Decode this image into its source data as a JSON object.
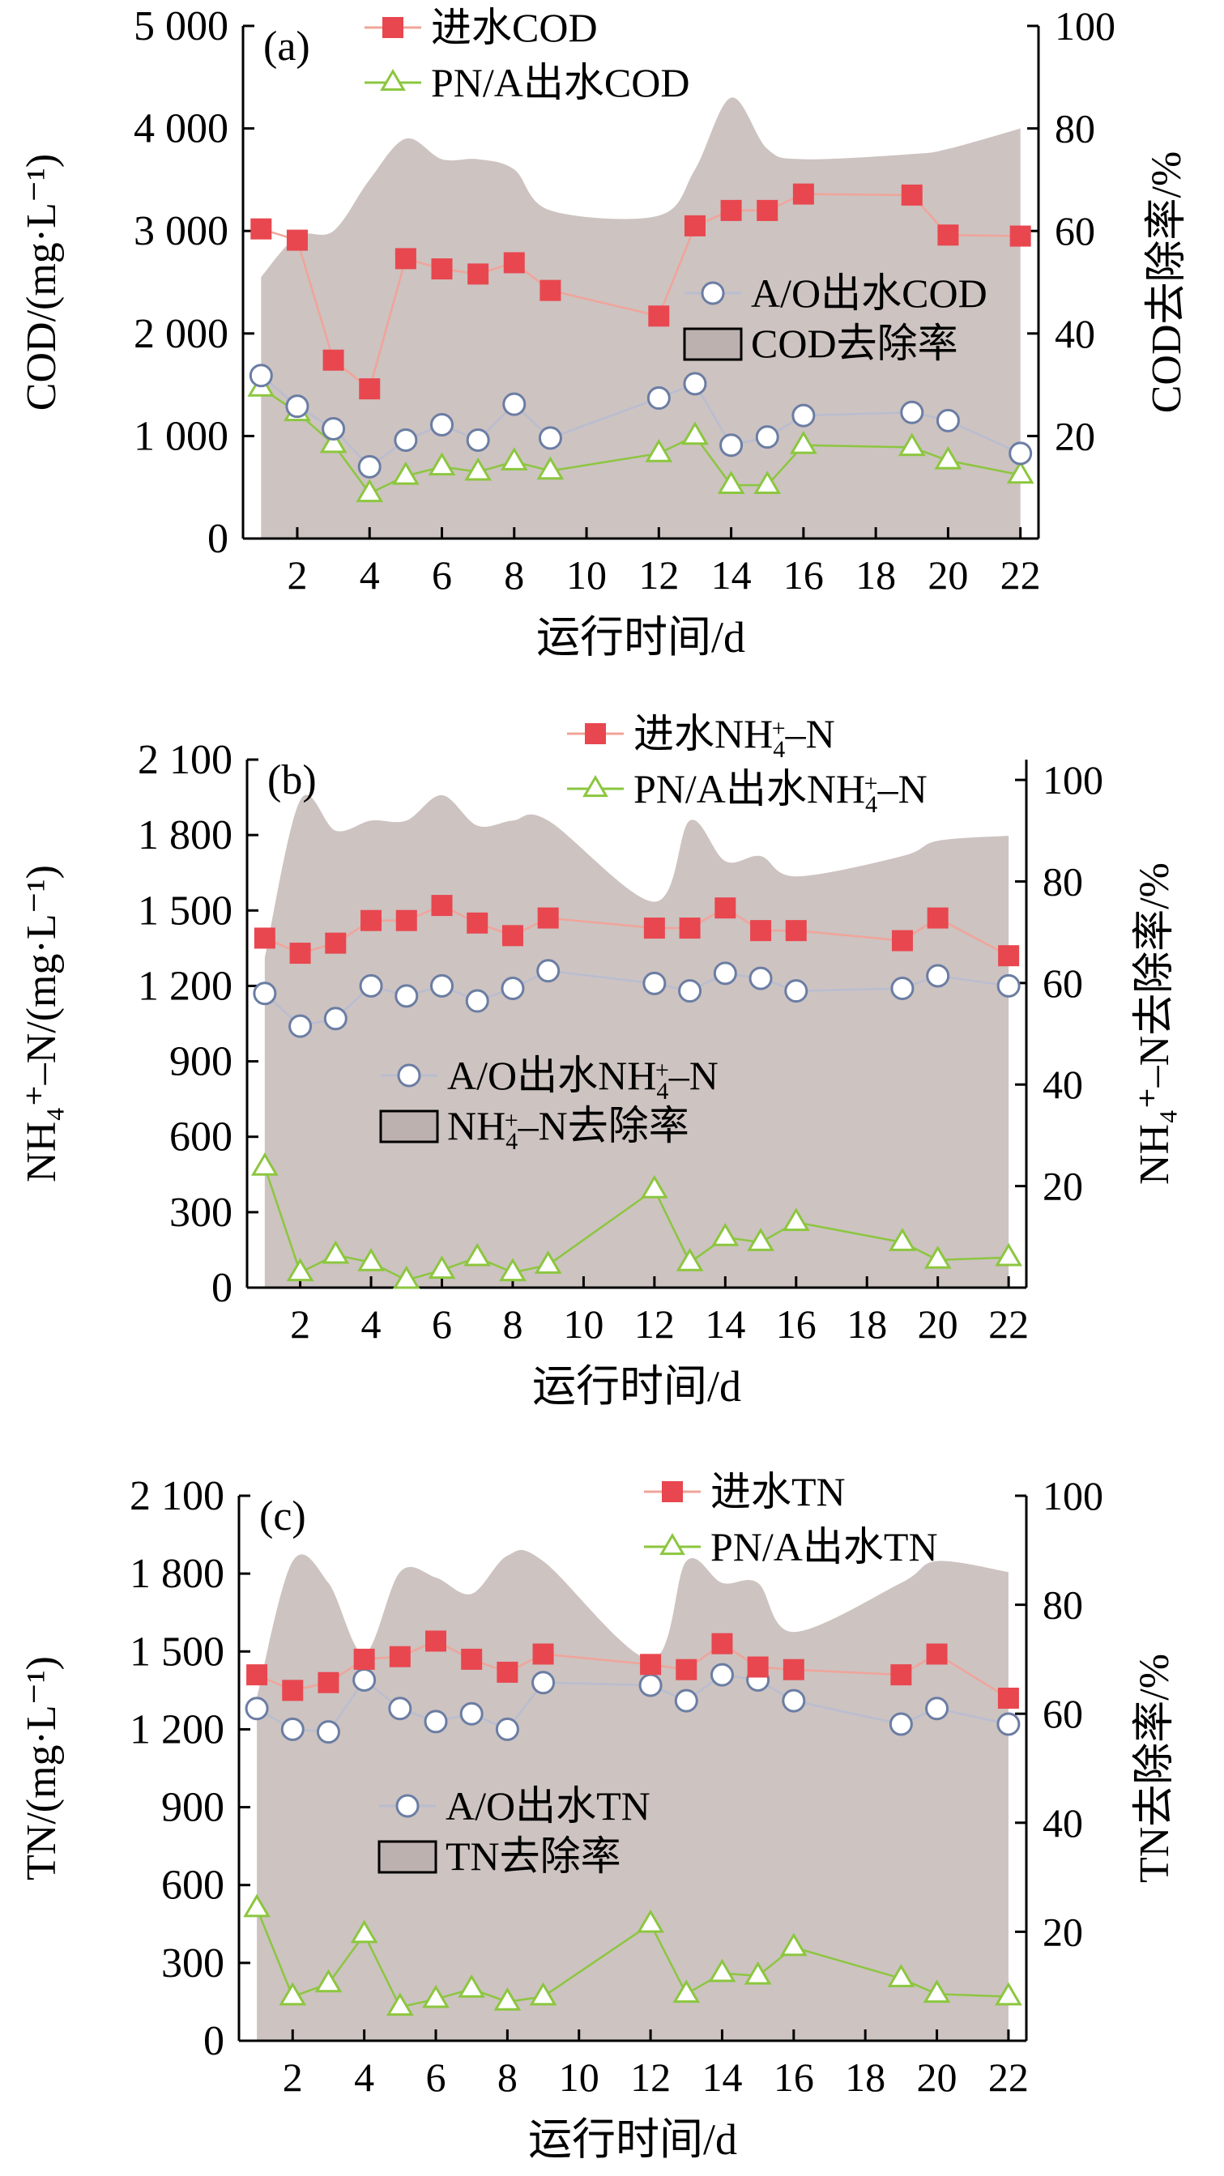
{
  "x_axis_label": "运行时间/d",
  "colors": {
    "influent": "#e8474f",
    "influent_line": "#f0a49a",
    "ao": "#6b7da3",
    "ao_line": "#b9bdd0",
    "pna": "#8cc63f",
    "area": "#cdc3c1",
    "area_legend": "#bdb1af"
  },
  "chart_data": [
    {
      "type": "line",
      "panel_label": "(a)",
      "xlabel": "运行时间/d",
      "ylabel": "COD/(mg·L⁻¹)",
      "y2label": "COD去除率/%",
      "xlim": [
        0.5,
        22.5
      ],
      "xticks": [
        2,
        4,
        6,
        8,
        10,
        12,
        14,
        16,
        18,
        20,
        22
      ],
      "ylim": [
        0,
        5000
      ],
      "yticks": [
        0,
        1000,
        2000,
        3000,
        4000,
        5000
      ],
      "ytick_labels": [
        "0",
        "1 000",
        "2 000",
        "3 000",
        "4 000",
        "5 000"
      ],
      "y2lim": [
        0,
        100
      ],
      "y2ticks": [
        20,
        40,
        60,
        80,
        100
      ],
      "y2tick_labels": [
        "20",
        "40",
        "60",
        "80",
        "100"
      ],
      "series": [
        {
          "name": "进水COD",
          "role": "influent",
          "x": [
            1,
            2,
            3,
            4,
            5,
            6,
            7,
            8,
            9,
            12,
            13,
            14,
            15,
            16,
            19,
            20,
            22
          ],
          "values": [
            3020,
            2910,
            1740,
            1460,
            2730,
            2630,
            2580,
            2690,
            2420,
            2170,
            3050,
            3200,
            3200,
            3360,
            3350,
            2960,
            2950
          ]
        },
        {
          "name": "A/O出水COD",
          "role": "ao",
          "x": [
            1,
            2,
            3,
            4,
            5,
            6,
            7,
            8,
            9,
            12,
            13,
            14,
            15,
            16,
            19,
            20,
            22
          ],
          "values": [
            1590,
            1290,
            1070,
            700,
            960,
            1110,
            960,
            1310,
            980,
            1370,
            1510,
            910,
            990,
            1200,
            1230,
            1150,
            830
          ]
        },
        {
          "name": "PN/A出水COD",
          "role": "pna",
          "x": [
            1,
            2,
            3,
            4,
            5,
            6,
            7,
            8,
            9,
            12,
            13,
            14,
            15,
            16,
            19,
            20,
            22
          ],
          "values": [
            1470,
            1230,
            920,
            440,
            610,
            700,
            650,
            750,
            660,
            830,
            1000,
            520,
            520,
            910,
            890,
            760,
            620
          ]
        },
        {
          "name": "COD去除率",
          "role": "area",
          "x": [
            1,
            2,
            3,
            4,
            5,
            6,
            7,
            8,
            9,
            12,
            13,
            14,
            15,
            16,
            19,
            20,
            22
          ],
          "values": [
            51,
            59,
            60,
            70,
            78,
            74,
            74,
            72,
            64,
            63,
            72,
            86,
            76,
            74,
            75,
            76,
            80
          ]
        }
      ]
    },
    {
      "type": "line",
      "panel_label": "(b)",
      "xlabel": "运行时间/d",
      "ylabel": "NH₄⁺–N/(mg·L⁻¹)",
      "y2label": "NH₄⁺–N去除率/%",
      "xlim": [
        0.5,
        22.5
      ],
      "xticks": [
        2,
        4,
        6,
        8,
        10,
        12,
        14,
        16,
        18,
        20,
        22
      ],
      "ylim": [
        0,
        2100
      ],
      "yticks": [
        0,
        300,
        600,
        900,
        1200,
        1500,
        1800,
        2100
      ],
      "ytick_labels": [
        "0",
        "300",
        "600",
        "900",
        "1 200",
        "1 500",
        "1 800",
        "2 100"
      ],
      "y2lim": [
        0,
        104
      ],
      "y2ticks": [
        20,
        40,
        60,
        80,
        100
      ],
      "y2tick_labels": [
        "20",
        "40",
        "60",
        "80",
        "100"
      ],
      "legend_entries": {
        "influent": [
          "进水NH",
          "4",
          "+",
          "–N"
        ],
        "ao": [
          "A/O出水NH",
          "4",
          "+",
          "–N"
        ],
        "pna": [
          "PN/A出水NH",
          "4",
          "+",
          "–N"
        ],
        "area": [
          "NH",
          "4",
          "+",
          "–N去除率"
        ]
      },
      "series": [
        {
          "name": "进水NH₄⁺–N",
          "role": "influent",
          "x": [
            1,
            2,
            3,
            4,
            5,
            6,
            7,
            8,
            9,
            12,
            13,
            14,
            15,
            16,
            19,
            20,
            22
          ],
          "values": [
            1390,
            1330,
            1370,
            1460,
            1460,
            1520,
            1450,
            1400,
            1470,
            1430,
            1430,
            1510,
            1420,
            1420,
            1380,
            1470,
            1320
          ]
        },
        {
          "name": "A/O出水NH₄⁺–N",
          "role": "ao",
          "x": [
            1,
            2,
            3,
            4,
            5,
            6,
            7,
            8,
            9,
            12,
            13,
            14,
            15,
            16,
            19,
            20,
            22
          ],
          "values": [
            1170,
            1040,
            1070,
            1200,
            1160,
            1200,
            1140,
            1190,
            1260,
            1210,
            1180,
            1250,
            1230,
            1180,
            1190,
            1240,
            1200
          ]
        },
        {
          "name": "PN/A出水NH₄⁺–N",
          "role": "pna",
          "x": [
            1,
            2,
            3,
            4,
            5,
            6,
            7,
            8,
            9,
            12,
            13,
            14,
            15,
            16,
            19,
            20,
            22
          ],
          "values": [
            480,
            60,
            130,
            100,
            30,
            70,
            120,
            60,
            90,
            390,
            100,
            200,
            180,
            260,
            180,
            110,
            120
          ]
        },
        {
          "name": "NH₄⁺–N去除率",
          "role": "area",
          "x": [
            1,
            2,
            3,
            4,
            5,
            6,
            7,
            8,
            9,
            12,
            13,
            14,
            15,
            16,
            19,
            20,
            22
          ],
          "values": [
            65,
            96,
            90,
            92,
            92,
            97,
            91,
            92,
            92,
            76,
            92,
            84,
            85,
            81,
            85,
            88,
            89
          ]
        }
      ]
    },
    {
      "type": "line",
      "panel_label": "(c)",
      "xlabel": "运行时间/d",
      "ylabel": "TN/(mg·L⁻¹)",
      "y2label": "TN去除率/%",
      "xlim": [
        0.5,
        22.5
      ],
      "xticks": [
        2,
        4,
        6,
        8,
        10,
        12,
        14,
        16,
        18,
        20,
        22
      ],
      "ylim": [
        0,
        2100
      ],
      "yticks": [
        0,
        300,
        600,
        900,
        1200,
        1500,
        1800,
        2100
      ],
      "ytick_labels": [
        "0",
        "300",
        "600",
        "900",
        "1 200",
        "1 500",
        "1 800",
        "2 100"
      ],
      "y2lim": [
        0,
        100
      ],
      "y2ticks": [
        20,
        40,
        60,
        80,
        100
      ],
      "y2tick_labels": [
        "20",
        "40",
        "60",
        "80",
        "100"
      ],
      "series": [
        {
          "name": "进水TN",
          "role": "influent",
          "x": [
            1,
            2,
            3,
            4,
            5,
            6,
            7,
            8,
            9,
            12,
            13,
            14,
            15,
            16,
            19,
            20,
            22
          ],
          "values": [
            1410,
            1350,
            1380,
            1470,
            1480,
            1540,
            1470,
            1420,
            1490,
            1450,
            1430,
            1530,
            1440,
            1430,
            1410,
            1490,
            1320
          ]
        },
        {
          "name": "A/O出水TN",
          "role": "ao",
          "x": [
            1,
            2,
            3,
            4,
            5,
            6,
            7,
            8,
            9,
            12,
            13,
            14,
            15,
            16,
            19,
            20,
            22
          ],
          "values": [
            1280,
            1200,
            1190,
            1390,
            1280,
            1230,
            1260,
            1200,
            1380,
            1370,
            1310,
            1410,
            1390,
            1310,
            1220,
            1280,
            1220
          ]
        },
        {
          "name": "PN/A出水TN",
          "role": "pna",
          "x": [
            1,
            2,
            3,
            4,
            5,
            6,
            7,
            8,
            9,
            12,
            13,
            14,
            15,
            16,
            19,
            20,
            22
          ],
          "values": [
            510,
            170,
            220,
            410,
            130,
            160,
            200,
            150,
            170,
            450,
            180,
            260,
            250,
            360,
            240,
            180,
            170
          ]
        },
        {
          "name": "TN去除率",
          "role": "area",
          "x": [
            1,
            2,
            3,
            4,
            5,
            6,
            7,
            8,
            9,
            12,
            13,
            14,
            15,
            16,
            19,
            20,
            22
          ],
          "values": [
            63,
            88,
            84,
            71,
            86,
            85,
            82,
            89,
            88,
            70,
            88,
            84,
            84,
            75,
            84,
            88,
            86
          ]
        }
      ]
    }
  ]
}
